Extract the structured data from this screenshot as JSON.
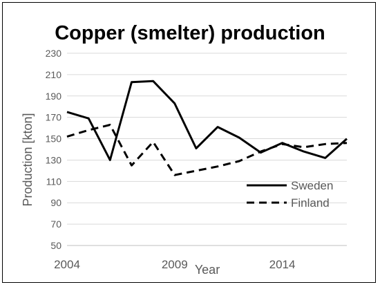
{
  "chart_data": {
    "type": "line",
    "title": "Copper (smelter) production",
    "xlabel": "Year",
    "ylabel": "Production [kton]",
    "x": [
      2004,
      2005,
      2006,
      2007,
      2008,
      2009,
      2010,
      2011,
      2012,
      2013,
      2014,
      2015,
      2016,
      2017
    ],
    "x_tick_labels": [
      "2004",
      "2009",
      "2014"
    ],
    "y_tick_labels": [
      "50",
      "70",
      "90",
      "110",
      "130",
      "150",
      "170",
      "190",
      "210",
      "230"
    ],
    "ylim": [
      50,
      230
    ],
    "xlim": [
      2004,
      2017
    ],
    "grid": true,
    "legend_position": "right",
    "series": [
      {
        "name": "Sweden",
        "style": "solid",
        "color": "#000000",
        "values": [
          175,
          169,
          130,
          203,
          204,
          183,
          141,
          161,
          151,
          137,
          146,
          138,
          132,
          150
        ]
      },
      {
        "name": "Finland",
        "style": "dashed",
        "color": "#000000",
        "values": [
          152,
          158,
          163,
          125,
          147,
          116,
          120,
          124,
          129,
          138,
          145,
          142,
          145,
          146
        ]
      }
    ]
  }
}
